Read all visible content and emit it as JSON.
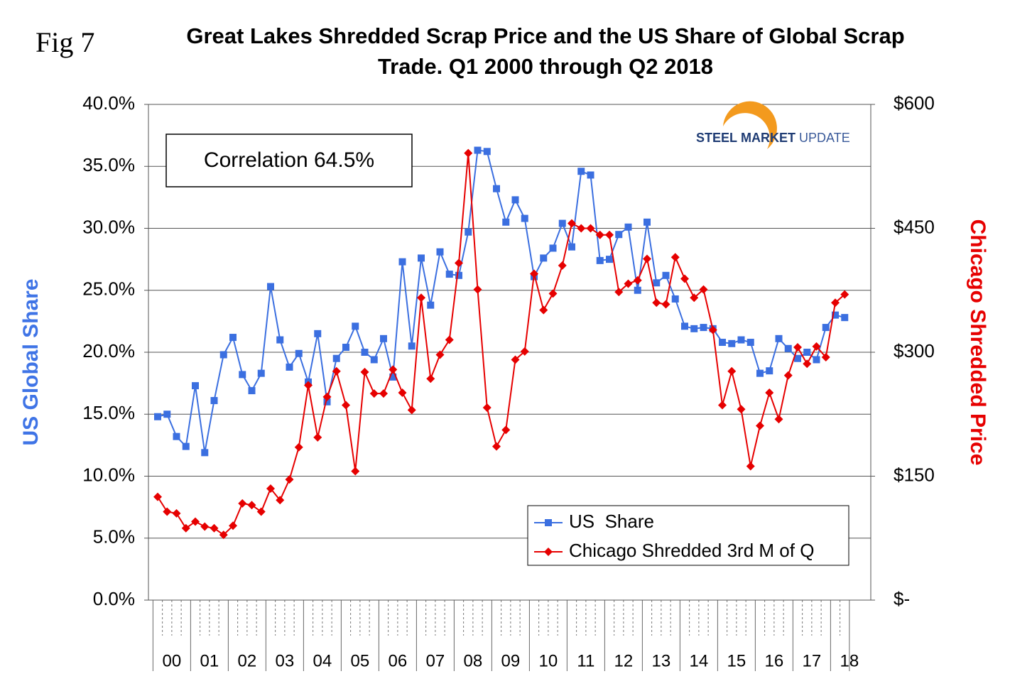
{
  "chart_data": {
    "type": "line",
    "figure_label": "Fig 7",
    "title": [
      "Great Lakes Shredded Scrap Price and the US Share of Global Scrap",
      "Trade. Q1 2000 through Q2 2018"
    ],
    "annotation": "Correlation 64.5%",
    "logo": [
      "STEEL",
      "MARKET",
      "UPDATE"
    ],
    "y_label": "US Global Share",
    "y2_label": "Chicago Shredded Price",
    "year_labels": [
      "00",
      "01",
      "02",
      "03",
      "04",
      "05",
      "06",
      "07",
      "08",
      "09",
      "10",
      "11",
      "12",
      "13",
      "14",
      "15",
      "16",
      "17",
      "18"
    ],
    "quarters_per_year": 4,
    "ylim": [
      0,
      40
    ],
    "yticks": [
      {
        "value": 0,
        "label": "0.0%"
      },
      {
        "value": 5,
        "label": "5.0%"
      },
      {
        "value": 10,
        "label": "10.0%"
      },
      {
        "value": 15,
        "label": "15.0%"
      },
      {
        "value": 20,
        "label": "20.0%"
      },
      {
        "value": 25,
        "label": "25.0%"
      },
      {
        "value": 30,
        "label": "30.0%"
      },
      {
        "value": 35,
        "label": "35.0%"
      },
      {
        "value": 40,
        "label": "40.0%"
      }
    ],
    "y2lim": [
      0,
      600
    ],
    "y2ticks": [
      {
        "value": 0,
        "label": "$-"
      },
      {
        "value": 150,
        "label": "$150"
      },
      {
        "value": 300,
        "label": "$300"
      },
      {
        "value": 450,
        "label": "$450"
      },
      {
        "value": 600,
        "label": "$600"
      }
    ],
    "grid": true,
    "legend": "bottom-right",
    "series": [
      {
        "name": "US  Share",
        "color": "#3b6fe0",
        "marker": "square",
        "values": [
          14.8,
          15.0,
          13.2,
          12.4,
          17.3,
          11.9,
          16.1,
          19.8,
          21.2,
          18.2,
          16.9,
          18.3,
          25.3,
          21.0,
          18.8,
          19.9,
          17.6,
          21.5,
          16.0,
          19.5,
          20.4,
          22.1,
          20.0,
          19.4,
          21.1,
          18.0,
          27.3,
          20.5,
          27.6,
          23.8,
          28.1,
          26.3,
          26.2,
          29.7,
          36.3,
          36.2,
          33.2,
          30.5,
          32.3,
          30.8,
          26.1,
          27.6,
          28.4,
          30.4,
          28.5,
          34.6,
          34.3,
          27.4,
          27.5,
          29.5,
          30.1,
          25.0,
          30.5,
          25.6,
          26.2,
          24.3,
          22.1,
          21.9,
          22.0,
          21.9,
          20.8,
          20.7,
          21.0,
          20.8,
          18.3,
          18.5,
          21.1,
          20.3,
          19.5,
          20.0,
          19.4,
          22.0,
          23.0,
          22.8
        ]
      },
      {
        "name": "Chicago Shredded 3rd M of Q",
        "color": "#e60000",
        "marker": "diamond",
        "axis": "y2",
        "values": [
          125,
          107,
          105,
          87,
          95,
          89,
          87,
          79,
          90,
          117,
          115,
          107,
          135,
          121,
          146,
          185,
          260,
          197,
          246,
          277,
          236,
          156,
          276,
          250,
          250,
          279,
          251,
          230,
          366,
          268,
          297,
          315,
          408,
          541,
          376,
          233,
          186,
          206,
          291,
          301,
          395,
          351,
          371,
          405,
          456,
          450,
          450,
          442,
          442,
          373,
          383,
          387,
          413,
          360,
          358,
          415,
          389,
          366,
          376,
          327,
          236,
          277,
          231,
          162,
          211,
          251,
          219,
          272,
          306,
          286,
          307,
          294,
          360,
          370
        ]
      }
    ]
  }
}
